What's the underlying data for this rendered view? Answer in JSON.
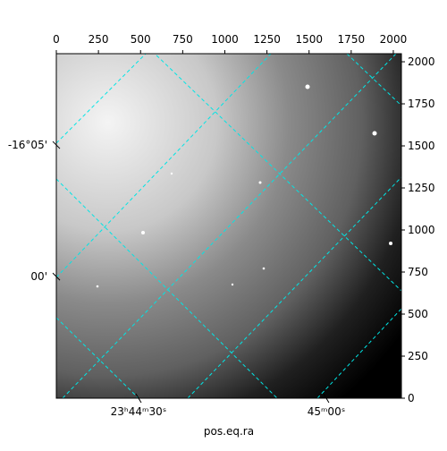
{
  "chart_data": {
    "type": "image",
    "x_label": "pos.eq.ra",
    "xlim": [
      0,
      2048
    ],
    "ylim": [
      0,
      2048
    ],
    "xticks": [
      0,
      250,
      500,
      750,
      1000,
      1250,
      1500,
      1750,
      2000
    ],
    "yticks": [
      0,
      250,
      500,
      750,
      1000,
      1250,
      1500,
      1750,
      2000
    ],
    "ra_ticks": [
      {
        "value": 488,
        "label": "23ʰ44ᵐ30ˢ"
      },
      {
        "value": 1602,
        "label": "45ᵐ00ˢ"
      }
    ],
    "dec_ticks": [
      {
        "value": 1505,
        "label": "-16°05'"
      },
      {
        "value": 723,
        "label": "00'"
      }
    ],
    "grid_color": "#00e5e5"
  }
}
